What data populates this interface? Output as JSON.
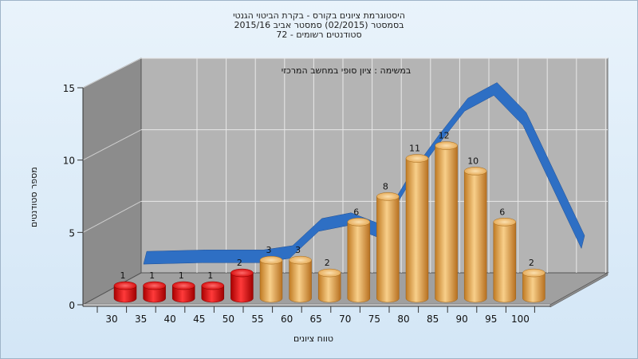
{
  "title": {
    "line1": "היסטוגרמת ציונים בקורס - בקרת הביטוי הגנטי",
    "line2": "בסמסטר  (02/2015)  סמסטר אביב 2015/16",
    "line3": "סטודנטים רשומים - 72"
  },
  "chart_data": {
    "type": "bar",
    "subtitle": "במשימה : ציון סופי במחשב המרכזי",
    "xlabel": "טווח ציונים",
    "ylabel": "מספר סטודנטים",
    "categories": [
      "30",
      "35",
      "40",
      "45",
      "50",
      "55",
      "60",
      "65",
      "70",
      "75",
      "80",
      "85",
      "90",
      "95",
      "100"
    ],
    "values": [
      1,
      1,
      1,
      1,
      2,
      3,
      3,
      2,
      6,
      8,
      11,
      12,
      10,
      6,
      2
    ],
    "ylim": [
      0,
      15
    ],
    "yticks": [
      0,
      5,
      10,
      15
    ],
    "grid": true,
    "colors": {
      "fail": "#e01010",
      "pass": "#e8a64a",
      "curve": "#2e6fc4",
      "wall": "#b4b4b4",
      "side_wall": "#8c8c8c"
    },
    "fail_threshold": 50,
    "curve": [
      {
        "x": 30,
        "y": 1.5
      },
      {
        "x": 40,
        "y": 1.6
      },
      {
        "x": 50,
        "y": 1.6
      },
      {
        "x": 55,
        "y": 1.9
      },
      {
        "x": 60,
        "y": 3.8
      },
      {
        "x": 65,
        "y": 4.2
      },
      {
        "x": 70,
        "y": 3.4
      },
      {
        "x": 75,
        "y": 6.8
      },
      {
        "x": 80,
        "y": 9.6
      },
      {
        "x": 85,
        "y": 12.2
      },
      {
        "x": 90,
        "y": 13.3
      },
      {
        "x": 95,
        "y": 11.2
      },
      {
        "x": 100,
        "y": 6.9
      },
      {
        "x": 105,
        "y": 2.6
      }
    ]
  }
}
